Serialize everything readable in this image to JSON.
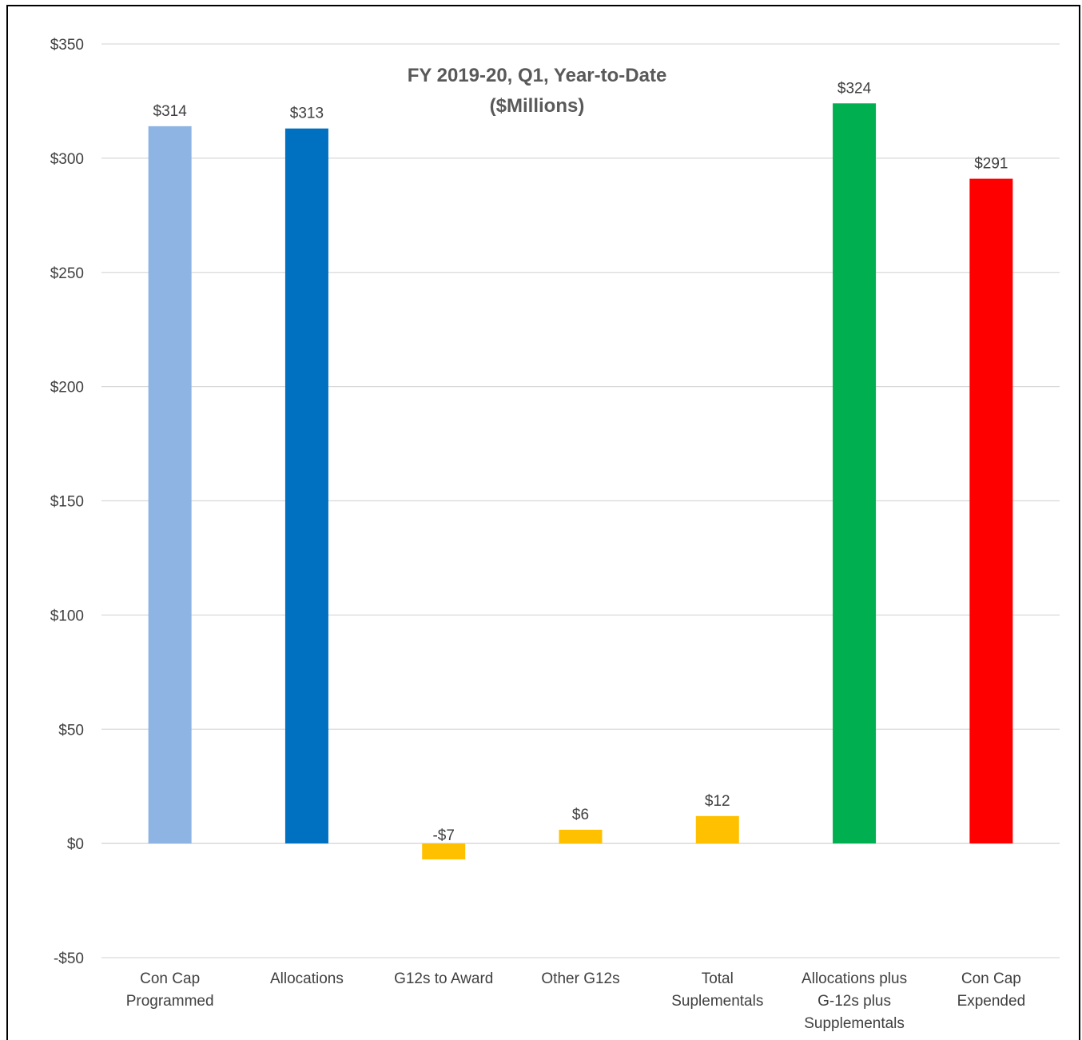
{
  "chart_data": {
    "type": "bar",
    "title_lines": [
      "FY 2019-20, Q1, Year-to-Date",
      "($Millions)"
    ],
    "categories": [
      [
        "Con Cap",
        "Programmed"
      ],
      [
        "Allocations"
      ],
      [
        "G12s to Award"
      ],
      [
        "Other G12s"
      ],
      [
        "Total",
        "Suplementals"
      ],
      [
        "Allocations plus",
        "G-12s plus",
        "Supplementals"
      ],
      [
        "Con Cap",
        "Expended"
      ]
    ],
    "values": [
      314,
      313,
      -7,
      6,
      12,
      324,
      291
    ],
    "data_labels": [
      "$314",
      "$313",
      "-$7",
      "$6",
      "$12",
      "$324",
      "$291"
    ],
    "colors": [
      "#8eb4e3",
      "#0070c0",
      "#ffc000",
      "#ffc000",
      "#ffc000",
      "#00b050",
      "#ff0000"
    ],
    "ylim": [
      -50,
      350
    ],
    "yticks": [
      -50,
      0,
      50,
      100,
      150,
      200,
      250,
      300,
      350
    ],
    "ytick_labels": [
      "-$50",
      "$0",
      "$50",
      "$100",
      "$150",
      "$200",
      "$250",
      "$300",
      "$350"
    ],
    "grid": true,
    "xlabel": "",
    "ylabel": ""
  }
}
